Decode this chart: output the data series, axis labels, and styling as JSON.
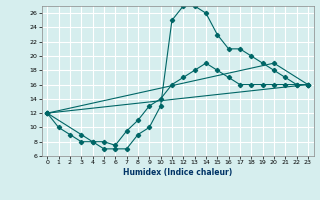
{
  "xlabel": "Humidex (Indice chaleur)",
  "ylabel": "",
  "background_color": "#d6eeee",
  "grid_color": "#b8d8d8",
  "line_color": "#006666",
  "xlim": [
    -0.5,
    23.5
  ],
  "ylim": [
    6,
    27
  ],
  "xticks": [
    0,
    1,
    2,
    3,
    4,
    5,
    6,
    7,
    8,
    9,
    10,
    11,
    12,
    13,
    14,
    15,
    16,
    17,
    18,
    19,
    20,
    21,
    22,
    23
  ],
  "yticks": [
    6,
    8,
    10,
    12,
    14,
    16,
    18,
    20,
    22,
    24,
    26
  ],
  "series1_x": [
    0,
    1,
    2,
    3,
    4,
    5,
    6,
    7,
    8,
    9,
    10,
    11,
    12,
    13,
    14,
    15,
    16,
    17,
    18,
    19,
    20,
    21,
    22,
    23
  ],
  "series1_y": [
    12,
    10,
    9,
    8,
    8,
    7,
    7,
    7,
    9,
    10,
    13,
    25,
    27,
    27,
    26,
    23,
    21,
    21,
    20,
    19,
    18,
    17,
    16,
    16
  ],
  "series2_x": [
    0,
    3,
    4,
    5,
    6,
    7,
    8,
    9,
    10,
    11,
    12,
    13,
    14,
    15,
    16,
    17,
    18,
    19,
    20,
    21,
    22,
    23
  ],
  "series2_y": [
    12,
    9,
    8,
    8,
    7.5,
    9.5,
    11,
    13,
    14,
    16,
    17,
    18,
    19,
    18,
    17,
    16,
    16,
    16,
    16,
    16,
    16,
    16
  ],
  "series3_x": [
    0,
    23
  ],
  "series3_y": [
    12,
    16
  ],
  "series4_x": [
    0,
    20,
    23
  ],
  "series4_y": [
    12,
    19,
    16
  ]
}
